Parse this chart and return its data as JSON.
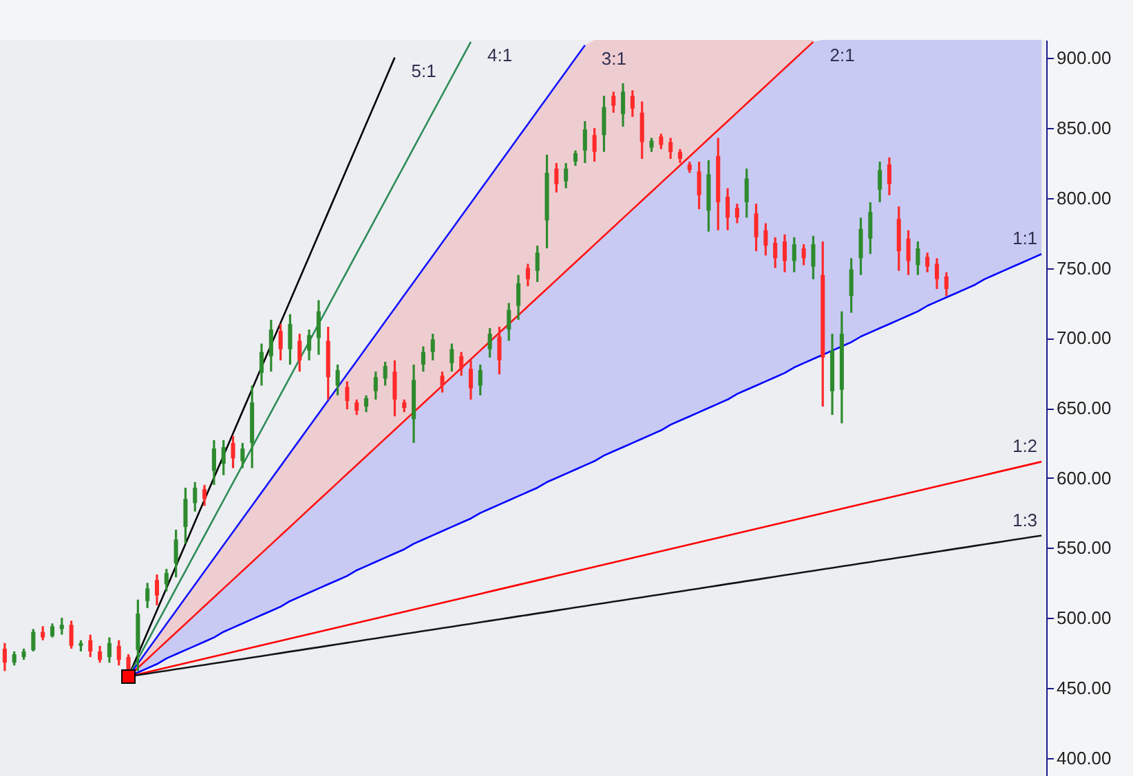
{
  "chart_data": {
    "type": "candlestick",
    "categories": [
      null,
      null,
      null,
      null,
      null,
      null,
      null,
      null,
      null,
      null,
      null,
      null,
      null,
      null,
      null,
      null,
      null,
      null,
      null,
      null,
      null,
      null,
      null,
      null,
      null,
      null,
      null,
      null,
      null,
      null,
      null,
      null,
      null,
      null,
      null,
      null,
      null,
      null,
      null,
      null,
      null,
      null,
      null,
      null,
      null,
      null,
      null,
      null,
      null,
      null,
      null,
      null,
      null,
      null,
      null,
      null,
      null,
      null,
      null,
      null,
      null,
      null,
      null,
      null,
      null,
      null,
      null,
      null,
      null,
      null,
      null,
      null,
      null,
      null,
      null,
      null,
      null,
      null,
      null,
      null,
      null,
      null,
      null,
      null,
      null,
      null,
      null,
      null,
      null,
      null,
      null,
      null,
      null,
      null,
      null,
      null,
      null,
      null,
      null,
      null,
      null,
      null,
      null,
      null,
      null,
      null,
      null,
      null,
      null,
      null
    ],
    "ohlc": [
      [
        478,
        482,
        462,
        468
      ],
      [
        468,
        476,
        466,
        474
      ],
      [
        472,
        478,
        470,
        476
      ],
      [
        477,
        492,
        476,
        490
      ],
      [
        490,
        494,
        484,
        486
      ],
      [
        487,
        496,
        486,
        494
      ],
      [
        492,
        500,
        488,
        495
      ],
      [
        495,
        498,
        478,
        480
      ],
      [
        480,
        484,
        476,
        482
      ],
      [
        484,
        488,
        472,
        476
      ],
      [
        476,
        480,
        468,
        470
      ],
      [
        472,
        486,
        468,
        482
      ],
      [
        480,
        484,
        466,
        470
      ],
      [
        472,
        474,
        458,
        462
      ],
      [
        477,
        513,
        462,
        503
      ],
      [
        512,
        525,
        507,
        521
      ],
      [
        527,
        531,
        509,
        516
      ],
      [
        524,
        535,
        519,
        532
      ],
      [
        539,
        563,
        529,
        556
      ],
      [
        565,
        593,
        553,
        585
      ],
      [
        582,
        597,
        576,
        593
      ],
      [
        592,
        595,
        580,
        585
      ],
      [
        605,
        627,
        595,
        621
      ],
      [
        610,
        627,
        602,
        622
      ],
      [
        625,
        630,
        607,
        614
      ],
      [
        612,
        625,
        607,
        621
      ],
      [
        625,
        666,
        607,
        654
      ],
      [
        675,
        696,
        666,
        690
      ],
      [
        687,
        713,
        676,
        706
      ],
      [
        705,
        710,
        684,
        692
      ],
      [
        692,
        717,
        681,
        710
      ],
      [
        698,
        703,
        676,
        684
      ],
      [
        691,
        706,
        684,
        702
      ],
      [
        700,
        727,
        688,
        719
      ],
      [
        698,
        708,
        656,
        672
      ],
      [
        666,
        681,
        659,
        677
      ],
      [
        665,
        669,
        649,
        655
      ],
      [
        654,
        656,
        645,
        648
      ],
      [
        651,
        659,
        647,
        657
      ],
      [
        662,
        676,
        656,
        672
      ],
      [
        671,
        683,
        666,
        680
      ],
      [
        676,
        684,
        644,
        656
      ],
      [
        654,
        656,
        647,
        650
      ],
      [
        642,
        681,
        625,
        670
      ],
      [
        681,
        694,
        676,
        690
      ],
      [
        690,
        703,
        684,
        699
      ],
      [
        673,
        676,
        661,
        666
      ],
      [
        682,
        696,
        676,
        692
      ],
      [
        687,
        690,
        673,
        678
      ],
      [
        678,
        684,
        656,
        664
      ],
      [
        666,
        681,
        659,
        677
      ],
      [
        692,
        707,
        686,
        703
      ],
      [
        701,
        708,
        674,
        684
      ],
      [
        706,
        725,
        698,
        720
      ],
      [
        723,
        745,
        713,
        739
      ],
      [
        750,
        753,
        737,
        742
      ],
      [
        748,
        766,
        740,
        761
      ],
      [
        784,
        831,
        764,
        818
      ],
      [
        821,
        825,
        804,
        810
      ],
      [
        812,
        825,
        807,
        821
      ],
      [
        826,
        834,
        823,
        832
      ],
      [
        834,
        855,
        825,
        849
      ],
      [
        845,
        850,
        826,
        833
      ],
      [
        845,
        873,
        833,
        865
      ],
      [
        873,
        876,
        861,
        866
      ],
      [
        860,
        882,
        851,
        876
      ],
      [
        873,
        877,
        858,
        864
      ],
      [
        861,
        869,
        828,
        840
      ],
      [
        836,
        843,
        833,
        841
      ],
      [
        844,
        846,
        835,
        838
      ],
      [
        840,
        843,
        828,
        833
      ],
      [
        833,
        835,
        825,
        828
      ],
      [
        824,
        826,
        818,
        820
      ],
      [
        819,
        826,
        792,
        802
      ],
      [
        791,
        827,
        776,
        817
      ],
      [
        830,
        843,
        777,
        797
      ],
      [
        801,
        807,
        777,
        786
      ],
      [
        793,
        796,
        782,
        786
      ],
      [
        797,
        821,
        786,
        814
      ],
      [
        789,
        796,
        762,
        772
      ],
      [
        777,
        782,
        759,
        766
      ],
      [
        768,
        772,
        750,
        757
      ],
      [
        769,
        774,
        747,
        755
      ],
      [
        755,
        772,
        747,
        767
      ],
      [
        764,
        767,
        752,
        757
      ],
      [
        751,
        773,
        742,
        767
      ],
      [
        745,
        769,
        651,
        686
      ],
      [
        662,
        703,
        645,
        691
      ],
      [
        663,
        719,
        639,
        703
      ],
      [
        730,
        757,
        718,
        749
      ],
      [
        757,
        786,
        745,
        778
      ],
      [
        771,
        797,
        760,
        790
      ],
      [
        806,
        826,
        797,
        820
      ],
      [
        824,
        829,
        802,
        810
      ],
      [
        785,
        794,
        748,
        762
      ],
      [
        771,
        777,
        745,
        755
      ],
      [
        752,
        769,
        745,
        764
      ],
      [
        758,
        761,
        747,
        751
      ],
      [
        753,
        757,
        735,
        742
      ],
      [
        744,
        747,
        730,
        735
      ],
      null,
      null,
      null,
      null,
      null,
      null,
      null,
      null,
      null,
      null
    ],
    "colors": [
      "#ff2a2a",
      "#2e8b2e",
      "#2e8b2e",
      "#2e8b2e",
      "#ff2a2a",
      "#2e8b2e",
      "#2e8b2e",
      "#ff2a2a",
      "#2e8b2e",
      "#ff2a2a",
      "#ff2a2a",
      "#2e8b2e",
      "#ff2a2a",
      "#ff2a2a",
      "#2e8b2e",
      "#2e8b2e",
      "#ff2a2a",
      "#2e8b2e",
      "#2e8b2e",
      "#2e8b2e",
      "#2e8b2e",
      "#ff2a2a",
      "#2e8b2e",
      "#2e8b2e",
      "#ff2a2a",
      "#2e8b2e",
      "#2e8b2e",
      "#2e8b2e",
      "#2e8b2e",
      "#ff2a2a",
      "#2e8b2e",
      "#ff2a2a",
      "#2e8b2e",
      "#2e8b2e",
      "#ff2a2a",
      "#2e8b2e",
      "#ff2a2a",
      "#ff2a2a",
      "#2e8b2e",
      "#2e8b2e",
      "#2e8b2e",
      "#ff2a2a",
      "#ff2a2a",
      "#2e8b2e",
      "#2e8b2e",
      "#2e8b2e",
      "#ff2a2a",
      "#2e8b2e",
      "#ff2a2a",
      "#ff2a2a",
      "#2e8b2e",
      "#2e8b2e",
      "#ff2a2a",
      "#2e8b2e",
      "#2e8b2e",
      "#ff2a2a",
      "#2e8b2e",
      "#2e8b2e",
      "#ff2a2a",
      "#2e8b2e",
      "#2e8b2e",
      "#2e8b2e",
      "#ff2a2a",
      "#2e8b2e",
      "#ff2a2a",
      "#2e8b2e",
      "#ff2a2a",
      "#ff2a2a",
      "#2e8b2e",
      "#ff2a2a",
      "#ff2a2a",
      "#ff2a2a",
      "#ff2a2a",
      "#ff2a2a",
      "#2e8b2e",
      "#ff2a2a",
      "#ff2a2a",
      "#ff2a2a",
      "#2e8b2e",
      "#ff2a2a",
      "#ff2a2a",
      "#ff2a2a",
      "#ff2a2a",
      "#2e8b2e",
      "#ff2a2a",
      "#2e8b2e",
      "#ff2a2a",
      "#2e8b2e",
      "#2e8b2e",
      "#2e8b2e",
      "#2e8b2e",
      "#2e8b2e",
      "#2e8b2e",
      "#ff2a2a",
      "#ff2a2a",
      "#ff2a2a",
      "#2e8b2e",
      "#ff2a2a",
      "#ff2a2a",
      "#ff2a2a",
      null,
      null,
      null,
      null,
      null,
      null,
      null,
      null,
      null,
      null
    ],
    "series": [
      {
        "type": "line",
        "name": "5:1",
        "color": "#000000",
        "values": [
          null,
          null,
          null,
          null,
          null,
          null,
          null,
          null,
          null,
          null,
          null,
          null,
          null,
          458,
          473.8,
          489.6,
          505.4,
          521.2,
          537,
          552.8,
          568.6,
          584.4,
          600.2,
          616,
          631.8,
          647.6,
          663.4,
          679.2,
          695,
          710.8,
          726.6,
          742.4,
          758.2,
          774,
          789.8,
          805.6,
          821.4,
          837.2,
          853,
          868.8,
          884.6,
          900.4,
          null,
          null,
          null,
          null,
          null,
          null,
          null,
          null,
          null,
          null,
          null,
          null,
          null,
          null,
          null,
          null,
          null,
          null,
          null,
          null,
          null,
          null,
          null,
          null,
          null,
          null,
          null,
          null,
          null,
          null,
          null,
          null,
          null,
          null,
          null,
          null,
          null,
          null,
          null,
          null,
          null,
          null,
          null,
          null,
          null,
          null,
          null,
          null,
          null,
          null,
          null,
          null,
          null,
          null,
          null,
          null,
          null,
          null,
          null,
          null,
          null,
          null,
          null,
          null,
          null,
          null,
          null,
          null
        ]
      },
      {
        "type": "line",
        "name": "4:1",
        "color": "#2e8b57",
        "values": [
          null,
          null,
          null,
          null,
          null,
          null,
          null,
          null,
          null,
          null,
          null,
          null,
          null,
          458,
          470.6,
          483.2,
          495.8,
          508.4,
          521,
          533.6,
          546.2,
          558.8,
          571.4,
          584,
          596.6,
          609.2,
          621.8,
          634.4,
          647,
          659.6,
          672.2,
          684.8,
          697.4,
          710,
          722.6,
          735.2,
          747.8,
          760.4,
          773,
          785.6,
          798.2,
          810.8,
          823.4,
          836,
          848.6,
          861.2,
          873.8,
          886.4,
          899,
          911.6,
          null,
          null,
          null,
          null,
          null,
          null,
          null,
          null,
          null,
          null,
          null,
          null,
          null,
          null,
          null,
          null,
          null,
          null,
          null,
          null,
          null,
          null,
          null,
          null,
          null,
          null,
          null,
          null,
          null,
          null,
          null,
          null,
          null,
          null,
          null,
          null,
          null,
          null,
          null,
          null,
          null,
          null,
          null,
          null,
          null,
          null,
          null,
          null,
          null,
          null,
          null,
          null,
          null,
          null,
          null,
          null,
          null,
          null,
          null,
          null
        ]
      },
      {
        "type": "line",
        "name": "3:1",
        "color": "#1414ff",
        "values": [
          null,
          null,
          null,
          null,
          null,
          null,
          null,
          null,
          null,
          null,
          null,
          null,
          null,
          458,
          467.4,
          476.8,
          486.2,
          495.6,
          505,
          514.4,
          523.8,
          533.2,
          542.6,
          552,
          561.4,
          570.8,
          580.2,
          589.6,
          599,
          608.4,
          617.8,
          627.2,
          636.6,
          646,
          655.4,
          664.8,
          674.2,
          683.6,
          693,
          702.4,
          711.8,
          721.2,
          730.6,
          740,
          749.4,
          758.8,
          768.2,
          777.6,
          787,
          796.4,
          805.8,
          815.2,
          824.6,
          834,
          843.4,
          852.8,
          862.2,
          871.6,
          881,
          890.4,
          899.8,
          909.2,
          null,
          null,
          null,
          null,
          null,
          null,
          null,
          null,
          null,
          null,
          null,
          null,
          null,
          null,
          null,
          null,
          null,
          null,
          null,
          null,
          null,
          null,
          null,
          null,
          null,
          null,
          null,
          null,
          null,
          null,
          null,
          null,
          null,
          null,
          null,
          null,
          null,
          null,
          null,
          null,
          null,
          null,
          null,
          null,
          null,
          null,
          null,
          null
        ]
      },
      {
        "type": "line",
        "name": "2:1",
        "color": "#ff1414",
        "lower": [
          null,
          null,
          null,
          null,
          null,
          null,
          null,
          null,
          null,
          null,
          null,
          null,
          null,
          458,
          464.3,
          470.6,
          476.9,
          483.2,
          489.5,
          495.8,
          502.1,
          508.4,
          514.7,
          521,
          527.3,
          533.6,
          539.9,
          546.2,
          552.5,
          558.8,
          565.1,
          571.4,
          577.7,
          584,
          590.3,
          596.6,
          602.9,
          609.2,
          615.5,
          621.8,
          628.1,
          634.4,
          640.7,
          647,
          653.3,
          659.6,
          665.9,
          672.2,
          678.5,
          684.8,
          691.1,
          697.4,
          703.7,
          710,
          716.3,
          722.6,
          728.9,
          735.2,
          741.5,
          747.8,
          754.1,
          760.4,
          766.7,
          773,
          779.3,
          785.6,
          791.9,
          798.2,
          804.5,
          810.8,
          817.1,
          823.4,
          829.7,
          836,
          842.3,
          848.6,
          854.9,
          861.2,
          867.5,
          873.8,
          880.1,
          886.4,
          892.7,
          899,
          905.3,
          911.6,
          null,
          null,
          null,
          null,
          null,
          null,
          null,
          null,
          null,
          null,
          null,
          null,
          null,
          null,
          null,
          null,
          null,
          null,
          null,
          null,
          null,
          null,
          null,
          null
        ],
        "values": [
          null,
          null,
          null,
          null,
          null,
          null,
          null,
          null,
          null,
          null,
          null,
          null,
          null,
          458,
          464.3,
          470.6,
          476.9,
          483.2,
          489.5,
          495.8,
          502.1,
          508.4,
          514.7,
          521,
          527.3,
          533.6,
          539.9,
          546.2,
          552.5,
          558.8,
          565.1,
          571.4,
          577.7,
          584,
          590.3,
          596.6,
          602.9,
          609.2,
          615.5,
          621.8,
          628.1,
          634.4,
          640.7,
          647,
          653.3,
          659.6,
          665.9,
          672.2,
          678.5,
          684.8,
          691.1,
          697.4,
          703.7,
          710,
          716.3,
          722.6,
          728.9,
          735.2,
          741.5,
          747.8,
          754.1,
          760.4,
          766.7,
          773,
          779.3,
          785.6,
          791.9,
          798.2,
          804.5,
          810.8,
          817.1,
          823.4,
          829.7,
          836,
          842.3,
          848.6,
          854.9,
          861.2,
          867.5,
          873.8,
          880.1,
          886.4,
          892.7,
          899,
          905.3,
          911.6,
          null,
          null,
          null,
          null,
          null,
          null,
          null,
          null,
          null,
          null,
          null,
          null,
          null,
          null,
          null,
          null,
          null,
          null,
          null,
          null,
          null,
          null,
          null,
          null
        ],
        "upper": [
          null,
          null,
          null,
          null,
          null,
          null,
          null,
          null,
          null,
          null,
          null,
          null,
          null,
          458,
          467.4,
          476.8,
          486.2,
          495.6,
          505,
          514.4,
          523.8,
          533.2,
          542.6,
          552,
          561.4,
          570.8,
          580.2,
          589.6,
          599,
          608.4,
          617.8,
          627.2,
          636.6,
          646,
          655.4,
          664.8,
          674.2,
          683.6,
          693,
          702.4,
          711.8,
          721.2,
          730.6,
          740,
          749.4,
          758.8,
          768.2,
          777.6,
          787,
          796.4,
          805.8,
          815.2,
          824.6,
          834,
          843.4,
          852.8,
          862.2,
          871.6,
          881,
          890.4,
          899.8,
          909.2,
          913,
          913,
          913,
          913,
          913,
          913,
          913,
          913,
          913,
          913,
          913,
          913,
          913,
          913,
          913,
          913,
          913,
          913,
          913,
          913,
          913,
          913,
          913,
          913,
          null,
          null,
          null,
          null,
          null,
          null,
          null,
          null,
          null,
          null,
          null,
          null,
          null,
          null,
          null,
          null,
          null,
          null,
          null,
          null,
          null,
          null,
          null,
          null
        ]
      },
      {
        "type": "line",
        "name": "1:1",
        "color": "#0000ff",
        "lower": [
          null,
          null,
          null,
          null,
          null,
          null,
          null,
          null,
          null,
          null,
          null,
          null,
          null,
          458,
          461,
          464,
          467,
          471,
          474,
          477,
          480,
          483,
          486,
          490,
          493,
          496,
          499,
          502,
          505,
          508,
          512,
          515,
          518,
          521,
          524,
          527,
          530,
          534,
          537,
          540,
          543,
          546,
          549,
          553,
          556,
          559,
          562,
          565,
          568,
          571,
          575,
          578,
          581,
          584,
          587,
          590,
          593,
          597,
          600,
          603,
          606,
          609,
          612,
          616,
          619,
          622,
          625,
          628,
          631,
          634,
          638,
          641,
          644,
          647,
          650,
          653,
          656,
          660,
          663,
          666,
          669,
          672,
          675,
          679,
          682,
          685,
          688,
          691,
          694,
          697,
          701,
          704,
          707,
          710,
          713,
          716,
          719,
          723,
          726,
          729,
          732,
          735,
          738,
          742,
          745,
          748,
          751,
          754,
          757,
          760
        ],
        "values": [
          null,
          null,
          null,
          null,
          null,
          null,
          null,
          null,
          null,
          null,
          null,
          null,
          null,
          458,
          461,
          464,
          467,
          471,
          474,
          477,
          480,
          483,
          486,
          490,
          493,
          496,
          499,
          502,
          505,
          508,
          512,
          515,
          518,
          521,
          524,
          527,
          530,
          534,
          537,
          540,
          543,
          546,
          549,
          553,
          556,
          559,
          562,
          565,
          568,
          571,
          575,
          578,
          581,
          584,
          587,
          590,
          593,
          597,
          600,
          603,
          606,
          609,
          612,
          616,
          619,
          622,
          625,
          628,
          631,
          634,
          638,
          641,
          644,
          647,
          650,
          653,
          656,
          660,
          663,
          666,
          669,
          672,
          675,
          679,
          682,
          685,
          688,
          691,
          694,
          697,
          701,
          704,
          707,
          710,
          713,
          716,
          719,
          723,
          726,
          729,
          732,
          735,
          738,
          742,
          745,
          748,
          751,
          754,
          757,
          760
        ],
        "upper": [
          null,
          null,
          null,
          null,
          null,
          null,
          null,
          null,
          null,
          null,
          null,
          null,
          null,
          458,
          464.3,
          470.6,
          476.9,
          483.2,
          489.5,
          495.8,
          502.1,
          508.4,
          514.7,
          521,
          527.3,
          533.6,
          539.9,
          546.2,
          552.5,
          558.8,
          565.1,
          571.4,
          577.7,
          584,
          590.3,
          596.6,
          602.9,
          609.2,
          615.5,
          621.8,
          628.1,
          634.4,
          640.7,
          647,
          653.3,
          659.6,
          665.9,
          672.2,
          678.5,
          684.8,
          691.1,
          697.4,
          703.7,
          710,
          716.3,
          722.6,
          728.9,
          735.2,
          741.5,
          747.8,
          754.1,
          760.4,
          766.7,
          773,
          779.3,
          785.6,
          791.9,
          798.2,
          804.5,
          810.8,
          817.1,
          823.4,
          829.7,
          836,
          842.3,
          848.6,
          854.9,
          861.2,
          867.5,
          873.8,
          880.1,
          886.4,
          892.7,
          899,
          905.3,
          911.6,
          913,
          913,
          913,
          913,
          913,
          913,
          913,
          913,
          913,
          913,
          913,
          913,
          913,
          913,
          913,
          913,
          913,
          913,
          913,
          913,
          913,
          913,
          913,
          913
        ]
      },
      {
        "type": "line",
        "name": "1:2",
        "color": "#ff0000",
        "values": [
          null,
          null,
          null,
          null,
          null,
          null,
          null,
          null,
          null,
          null,
          null,
          null,
          null,
          458,
          459.6,
          461.2,
          462.8,
          464.4,
          466,
          467.6,
          469.2,
          470.8,
          472.4,
          474,
          475.6,
          477.2,
          478.8,
          480.4,
          482,
          483.6,
          485.2,
          486.8,
          488.4,
          490,
          491.6,
          493.2,
          494.8,
          496.4,
          498,
          499.6,
          501.2,
          502.8,
          504.4,
          506,
          507.6,
          509.2,
          510.8,
          512.4,
          514,
          515.6,
          517.2,
          518.8,
          520.4,
          522,
          523.6,
          525.2,
          526.8,
          528.4,
          530,
          531.6,
          533.2,
          534.8,
          536.4,
          538,
          539.6,
          541.2,
          542.8,
          544.4,
          546,
          547.6,
          549.2,
          550.8,
          552.4,
          554,
          555.6,
          557.2,
          558.8,
          560.4,
          562,
          563.6,
          565.2,
          566.8,
          568.4,
          570,
          571.6,
          573.2,
          574.8,
          576.4,
          578,
          579.6,
          581.2,
          582.8,
          584.4,
          586,
          587.6,
          589.2,
          590.8,
          592.4,
          594,
          595.6,
          597.2,
          598.8,
          600.4,
          602,
          603.6,
          605.2,
          606.8,
          608.4,
          610,
          611.6
        ]
      },
      {
        "type": "line",
        "name": "1:3",
        "color": "#141414",
        "values": [
          null,
          null,
          null,
          null,
          null,
          null,
          null,
          null,
          null,
          null,
          null,
          null,
          null,
          458,
          459.1,
          460.1,
          461.2,
          462.2,
          463.3,
          464.3,
          465.4,
          466.4,
          467.5,
          468.5,
          469.6,
          470.6,
          471.7,
          472.7,
          473.8,
          474.8,
          475.9,
          476.9,
          478,
          479,
          480.1,
          481.1,
          482.2,
          483.2,
          484.3,
          485.3,
          486.4,
          487.4,
          488.5,
          489.5,
          490.6,
          491.6,
          492.7,
          493.7,
          494.8,
          495.8,
          496.9,
          497.9,
          499,
          500,
          501.1,
          502.1,
          503.2,
          504.2,
          505.3,
          506.3,
          507.4,
          508.4,
          509.5,
          510.5,
          511.6,
          512.6,
          513.7,
          514.7,
          515.8,
          516.8,
          517.9,
          518.9,
          520,
          521,
          522.1,
          523.1,
          524.2,
          525.2,
          526.3,
          527.3,
          528.4,
          529.4,
          530.5,
          531.5,
          532.6,
          533.6,
          534.7,
          535.7,
          536.8,
          537.8,
          538.9,
          539.9,
          541,
          542,
          543.1,
          544.1,
          545.2,
          546.2,
          547.3,
          548.3,
          549.4,
          550.4,
          551.5,
          552.5,
          553.6,
          554.6,
          555.7,
          556.7,
          557.8,
          558.8
        ]
      },
      {
        "type": "scatter",
        "color": "#ff0000",
        "marker": "square",
        "values": [
          null,
          null,
          null,
          null,
          null,
          null,
          null,
          null,
          null,
          null,
          null,
          null,
          null,
          458,
          null,
          null,
          null,
          null,
          null,
          null,
          null,
          null,
          null,
          null,
          null,
          null,
          null,
          null,
          null,
          null,
          null,
          null,
          null,
          null,
          null,
          null,
          null,
          null,
          null,
          null,
          null,
          null,
          null,
          null,
          null,
          null,
          null,
          null,
          null,
          null,
          null,
          null,
          null,
          null,
          null,
          null,
          null,
          null,
          null,
          null,
          null,
          null,
          null,
          null,
          null,
          null,
          null,
          null,
          null,
          null,
          null,
          null,
          null,
          null,
          null,
          null,
          null,
          null,
          null,
          null,
          null,
          null,
          null,
          null,
          null,
          null,
          null,
          null,
          null,
          null,
          null,
          null,
          null,
          null,
          null,
          null,
          null,
          null,
          null,
          null,
          null,
          null,
          null,
          null,
          null,
          null,
          null,
          null,
          null,
          null
        ]
      }
    ],
    "ylim": [
      387,
      913
    ],
    "yticks": [
      {
        "value": 400,
        "label": "400.00"
      },
      {
        "value": 450,
        "label": "450.00"
      },
      {
        "value": 500,
        "label": "500.00"
      },
      {
        "value": 550,
        "label": "550.00"
      },
      {
        "value": 600,
        "label": "600.00"
      },
      {
        "value": 650,
        "label": "650.00"
      },
      {
        "value": 700,
        "label": "700.00"
      },
      {
        "value": 750,
        "label": "750.00"
      },
      {
        "value": 800,
        "label": "800.00"
      },
      {
        "value": 850,
        "label": "850.00"
      },
      {
        "value": 900,
        "label": "900.00"
      }
    ],
    "tick_labels": "y"
  }
}
